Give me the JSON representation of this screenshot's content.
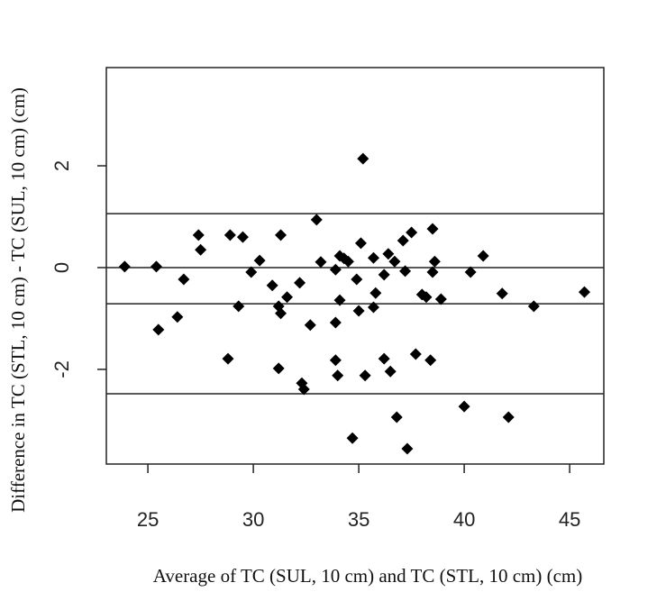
{
  "chart_data": {
    "type": "scatter",
    "xlabel": "Average of TC (SUL, 10 cm) and TC (STL, 10 cm) (cm)",
    "ylabel": "Difference in TC (STL, 10 cm) - TC (SUL, 10 cm) (cm)",
    "xlim": [
      23.03,
      46.62
    ],
    "ylim": [
      -3.86,
      3.93
    ],
    "xticks": [
      25,
      30,
      35,
      40,
      45
    ],
    "yticks": [
      -2,
      0,
      2
    ],
    "hlines": [
      1.06,
      0,
      -0.71,
      -2.48
    ],
    "color": "#000000",
    "x": [
      23.9,
      25.4,
      25.5,
      26.4,
      26.7,
      27.4,
      27.5,
      28.8,
      28.9,
      29.3,
      29.5,
      29.9,
      30.3,
      30.9,
      31.2,
      31.3,
      31.2,
      31.3,
      31.6,
      32.2,
      32.3,
      32.4,
      32.7,
      33.0,
      33.2,
      33.9,
      33.9,
      33.9,
      34.0,
      34.1,
      34.1,
      34.3,
      34.5,
      34.7,
      34.9,
      35.0,
      35.1,
      35.2,
      35.3,
      35.7,
      35.8,
      35.7,
      36.2,
      36.2,
      36.4,
      36.5,
      36.7,
      36.8,
      37.1,
      37.2,
      37.3,
      37.5,
      37.7,
      38.0,
      38.2,
      38.4,
      38.5,
      38.5,
      38.6,
      38.9,
      40.0,
      40.3,
      40.9,
      41.8,
      42.1,
      43.3,
      45.7
    ],
    "y": [
      0.02,
      0.02,
      -1.22,
      -0.97,
      -0.23,
      0.64,
      0.35,
      -1.79,
      0.64,
      -0.76,
      0.6,
      -0.09,
      0.14,
      -0.35,
      -1.98,
      0.64,
      -0.76,
      -0.9,
      -0.58,
      -0.3,
      -2.27,
      -2.39,
      -1.13,
      0.94,
      0.11,
      -0.04,
      -1.08,
      -1.82,
      -2.12,
      0.23,
      -0.64,
      0.18,
      0.12,
      -3.35,
      -0.23,
      -0.85,
      0.48,
      2.14,
      -2.12,
      0.19,
      -0.5,
      -0.78,
      -1.79,
      -0.14,
      0.27,
      -2.04,
      0.12,
      -2.94,
      0.53,
      -0.07,
      -3.56,
      0.69,
      -1.7,
      -0.53,
      -0.58,
      -1.82,
      0.76,
      -0.09,
      0.12,
      -0.62,
      -2.73,
      -0.09,
      0.23,
      -0.51,
      -2.94,
      -0.76,
      -0.48
    ]
  }
}
